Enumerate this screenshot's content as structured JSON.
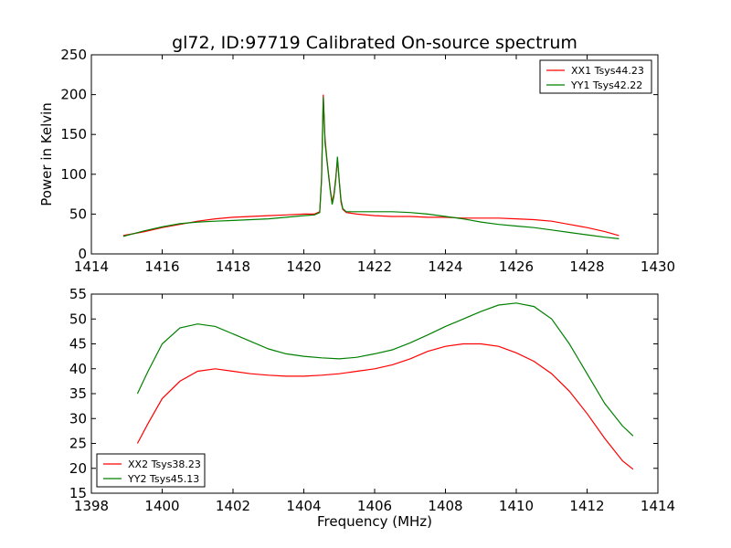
{
  "figure": {
    "title": "gl72, ID:97719 Calibrated On-source spectrum",
    "background": "#ffffff"
  },
  "chart_data": [
    {
      "type": "line",
      "title": "gl72, ID:97719 Calibrated On-source spectrum",
      "xlabel": "",
      "ylabel": "Power in Kelvin",
      "xlim": [
        1414,
        1430
      ],
      "ylim": [
        0,
        250
      ],
      "xticks": [
        1414,
        1416,
        1418,
        1420,
        1422,
        1424,
        1426,
        1428,
        1430
      ],
      "yticks": [
        0,
        50,
        100,
        150,
        200,
        250
      ],
      "grid": false,
      "legend_position": "top-right",
      "series": [
        {
          "name": "XX1 Tsys44.23",
          "color": "#ff0000",
          "x": [
            1414.9,
            1415.5,
            1416.0,
            1416.5,
            1417.0,
            1417.5,
            1418.0,
            1418.5,
            1419.0,
            1419.5,
            1420.0,
            1420.3,
            1420.45,
            1420.5,
            1420.55,
            1420.6,
            1420.65,
            1420.7,
            1420.75,
            1420.8,
            1420.85,
            1420.9,
            1420.95,
            1421.0,
            1421.05,
            1421.1,
            1421.2,
            1421.5,
            1422.0,
            1422.5,
            1423.0,
            1423.5,
            1424.0,
            1424.5,
            1425.0,
            1425.5,
            1426.0,
            1426.5,
            1427.0,
            1427.5,
            1428.0,
            1428.5,
            1428.9
          ],
          "y": [
            23,
            28,
            33,
            37,
            41,
            44,
            46,
            47,
            48,
            49,
            50,
            50,
            53,
            95,
            200,
            145,
            120,
            100,
            80,
            65,
            75,
            95,
            118,
            90,
            65,
            56,
            52,
            50,
            48,
            47,
            47,
            46,
            46,
            45,
            45,
            45,
            44,
            43,
            41,
            37,
            33,
            28,
            23
          ]
        },
        {
          "name": "YY1 Tsys42.22",
          "color": "#008000",
          "x": [
            1414.9,
            1415.5,
            1416.0,
            1416.5,
            1417.0,
            1417.5,
            1418.0,
            1418.5,
            1419.0,
            1419.5,
            1420.0,
            1420.3,
            1420.45,
            1420.5,
            1420.55,
            1420.6,
            1420.65,
            1420.7,
            1420.75,
            1420.8,
            1420.85,
            1420.9,
            1420.95,
            1421.0,
            1421.05,
            1421.1,
            1421.2,
            1421.5,
            1422.0,
            1422.5,
            1423.0,
            1423.5,
            1424.0,
            1424.5,
            1425.0,
            1425.5,
            1426.0,
            1426.5,
            1427.0,
            1427.5,
            1428.0,
            1428.5,
            1428.9
          ],
          "y": [
            22,
            29,
            34,
            38,
            40,
            41,
            42,
            43,
            44,
            46,
            48,
            49,
            52,
            92,
            197,
            140,
            118,
            98,
            78,
            62,
            72,
            92,
            122,
            92,
            68,
            57,
            53,
            53,
            53,
            53,
            52,
            50,
            47,
            44,
            40,
            37,
            35,
            33,
            30,
            27,
            24,
            21,
            19
          ]
        }
      ]
    },
    {
      "type": "line",
      "title": "",
      "xlabel": "Frequency (MHz)",
      "ylabel": "",
      "xlim": [
        1398,
        1414
      ],
      "ylim": [
        15,
        55
      ],
      "xticks": [
        1398,
        1400,
        1402,
        1404,
        1406,
        1408,
        1410,
        1412,
        1414
      ],
      "yticks": [
        15,
        20,
        25,
        30,
        35,
        40,
        45,
        50,
        55
      ],
      "grid": false,
      "legend_position": "bottom-left",
      "series": [
        {
          "name": "XX2 Tsys38.23",
          "color": "#ff0000",
          "x": [
            1399.3,
            1399.6,
            1400.0,
            1400.5,
            1401.0,
            1401.5,
            1402.0,
            1402.5,
            1403.0,
            1403.5,
            1404.0,
            1404.5,
            1405.0,
            1405.5,
            1406.0,
            1406.5,
            1407.0,
            1407.5,
            1408.0,
            1408.5,
            1409.0,
            1409.5,
            1410.0,
            1410.5,
            1411.0,
            1411.5,
            1412.0,
            1412.5,
            1413.0,
            1413.3
          ],
          "y": [
            25,
            29,
            34,
            37.5,
            39.5,
            40,
            39.5,
            39,
            38.7,
            38.5,
            38.5,
            38.7,
            39,
            39.5,
            40,
            40.8,
            42,
            43.5,
            44.5,
            45,
            45,
            44.5,
            43.2,
            41.5,
            39,
            35.5,
            31,
            26,
            21.5,
            19.8
          ]
        },
        {
          "name": "YY2 Tsys45.13",
          "color": "#008000",
          "x": [
            1399.3,
            1399.6,
            1400.0,
            1400.5,
            1401.0,
            1401.5,
            1402.0,
            1402.5,
            1403.0,
            1403.5,
            1404.0,
            1404.5,
            1405.0,
            1405.5,
            1406.0,
            1406.5,
            1407.0,
            1407.5,
            1408.0,
            1408.5,
            1409.0,
            1409.5,
            1410.0,
            1410.5,
            1411.0,
            1411.5,
            1412.0,
            1412.5,
            1413.0,
            1413.3
          ],
          "y": [
            35,
            39.5,
            45,
            48.2,
            49,
            48.5,
            47,
            45.5,
            44,
            43,
            42.5,
            42.2,
            42,
            42.3,
            43,
            43.8,
            45.2,
            46.8,
            48.5,
            50,
            51.5,
            52.8,
            53.2,
            52.5,
            50,
            45,
            39,
            33,
            28.5,
            26.5
          ]
        }
      ]
    }
  ]
}
